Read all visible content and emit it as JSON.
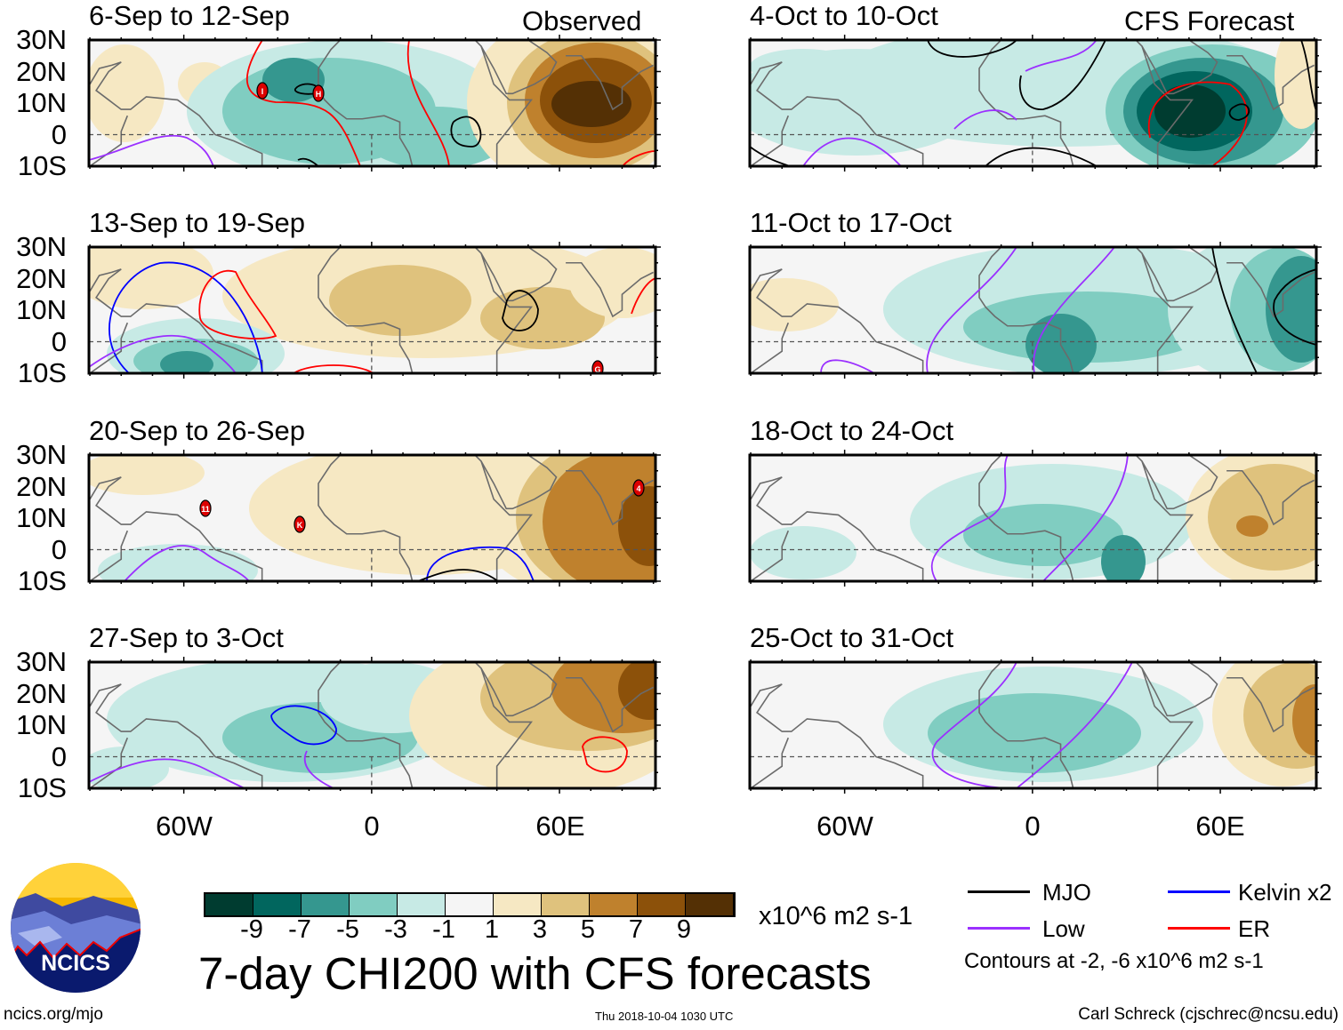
{
  "headers": {
    "observed": "Observed",
    "forecast": "CFS Forecast"
  },
  "panels": [
    {
      "title": "6-Sep to 12-Sep",
      "storms": [
        "I",
        "H"
      ]
    },
    {
      "title": "13-Sep to 19-Sep",
      "storms": [
        "G"
      ]
    },
    {
      "title": "20-Sep to 26-Sep",
      "storms": [
        "11",
        "K",
        "4"
      ]
    },
    {
      "title": "27-Sep to 3-Oct",
      "storms": []
    },
    {
      "title": "4-Oct to 10-Oct",
      "storms": []
    },
    {
      "title": "11-Oct to 17-Oct",
      "storms": []
    },
    {
      "title": "18-Oct to 24-Oct",
      "storms": []
    },
    {
      "title": "25-Oct to 31-Oct",
      "storms": []
    }
  ],
  "lat_labels": [
    "30N",
    "20N",
    "10N",
    "0",
    "10S"
  ],
  "lon_labels": [
    "60W",
    "0",
    "60E"
  ],
  "colorbar": {
    "colors": [
      "#003c30",
      "#01665e",
      "#35978f",
      "#80cdc1",
      "#c7eae5",
      "#f5f5f5",
      "#f6e8c3",
      "#dfc27d",
      "#bf812d",
      "#8c510a",
      "#543005"
    ],
    "labels": [
      "-9",
      "-7",
      "-5",
      "-3",
      "-1",
      "1",
      "3",
      "5",
      "7",
      "9"
    ],
    "units": "x10^6 m2 s-1"
  },
  "legend": {
    "mjo": "MJO",
    "low": "Low",
    "kelvin": "Kelvin x2",
    "er": "ER",
    "colors": {
      "mjo": "#000000",
      "low": "#9b30ff",
      "kelvin": "#0000ff",
      "er": "#ff0000"
    },
    "note": "Contours at -2, -6 x10^6 m2 s-1"
  },
  "title": "7-day CHI200 with CFS forecasts",
  "logo": {
    "text": "NCICS"
  },
  "footer": {
    "url": "ncics.org/mjo",
    "timestamp": "Thu 2018-10-04 1030 UTC",
    "author": "Carl Schreck (cjschrec@ncsu.edu)"
  }
}
